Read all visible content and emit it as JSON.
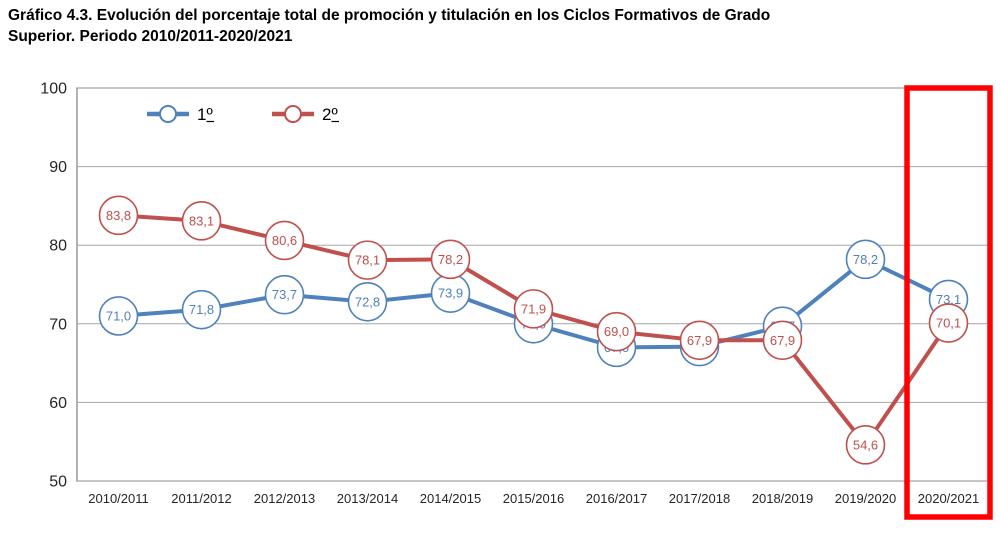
{
  "title": {
    "line1": "Gráfico 4.3. Evolución del porcentaje total de promoción y titulación en los Ciclos Formativos de Grado",
    "line2": "Superior. Periodo 2010/2011-2020/2021"
  },
  "chart_data": {
    "type": "line",
    "categories": [
      "2010/2011",
      "2011/2012",
      "2012/2013",
      "2013/2014",
      "2014/2015",
      "2015/2016",
      "2016/2017",
      "2017/2018",
      "2018/2019",
      "2019/2020",
      "2020/2021"
    ],
    "series": [
      {
        "name": "1º",
        "color": "#4F81BD",
        "values": [
          71.0,
          71.8,
          73.7,
          72.8,
          73.9,
          70.0,
          67.0,
          67.1,
          69.7,
          78.2,
          73.1
        ]
      },
      {
        "name": "2º",
        "color": "#C0504D",
        "values": [
          83.8,
          83.1,
          80.6,
          78.1,
          78.2,
          71.9,
          69.0,
          67.9,
          67.9,
          54.6,
          70.1
        ]
      }
    ],
    "xlabel": "",
    "ylabel": "",
    "ylim": [
      50,
      100
    ],
    "yticks": [
      50,
      60,
      70,
      80,
      90,
      100
    ],
    "grid": true,
    "legend_position": "top-left-inside",
    "decimal_separator": ",",
    "marker": "circle-with-value",
    "highlight": {
      "category": "2020/2021",
      "color": "#FF0000"
    },
    "colors": {
      "gridline": "#A6A6A6",
      "plot_border": "#7F7F7F",
      "axis_text": "#262626",
      "marker_fill": "#FFFFFF"
    }
  }
}
